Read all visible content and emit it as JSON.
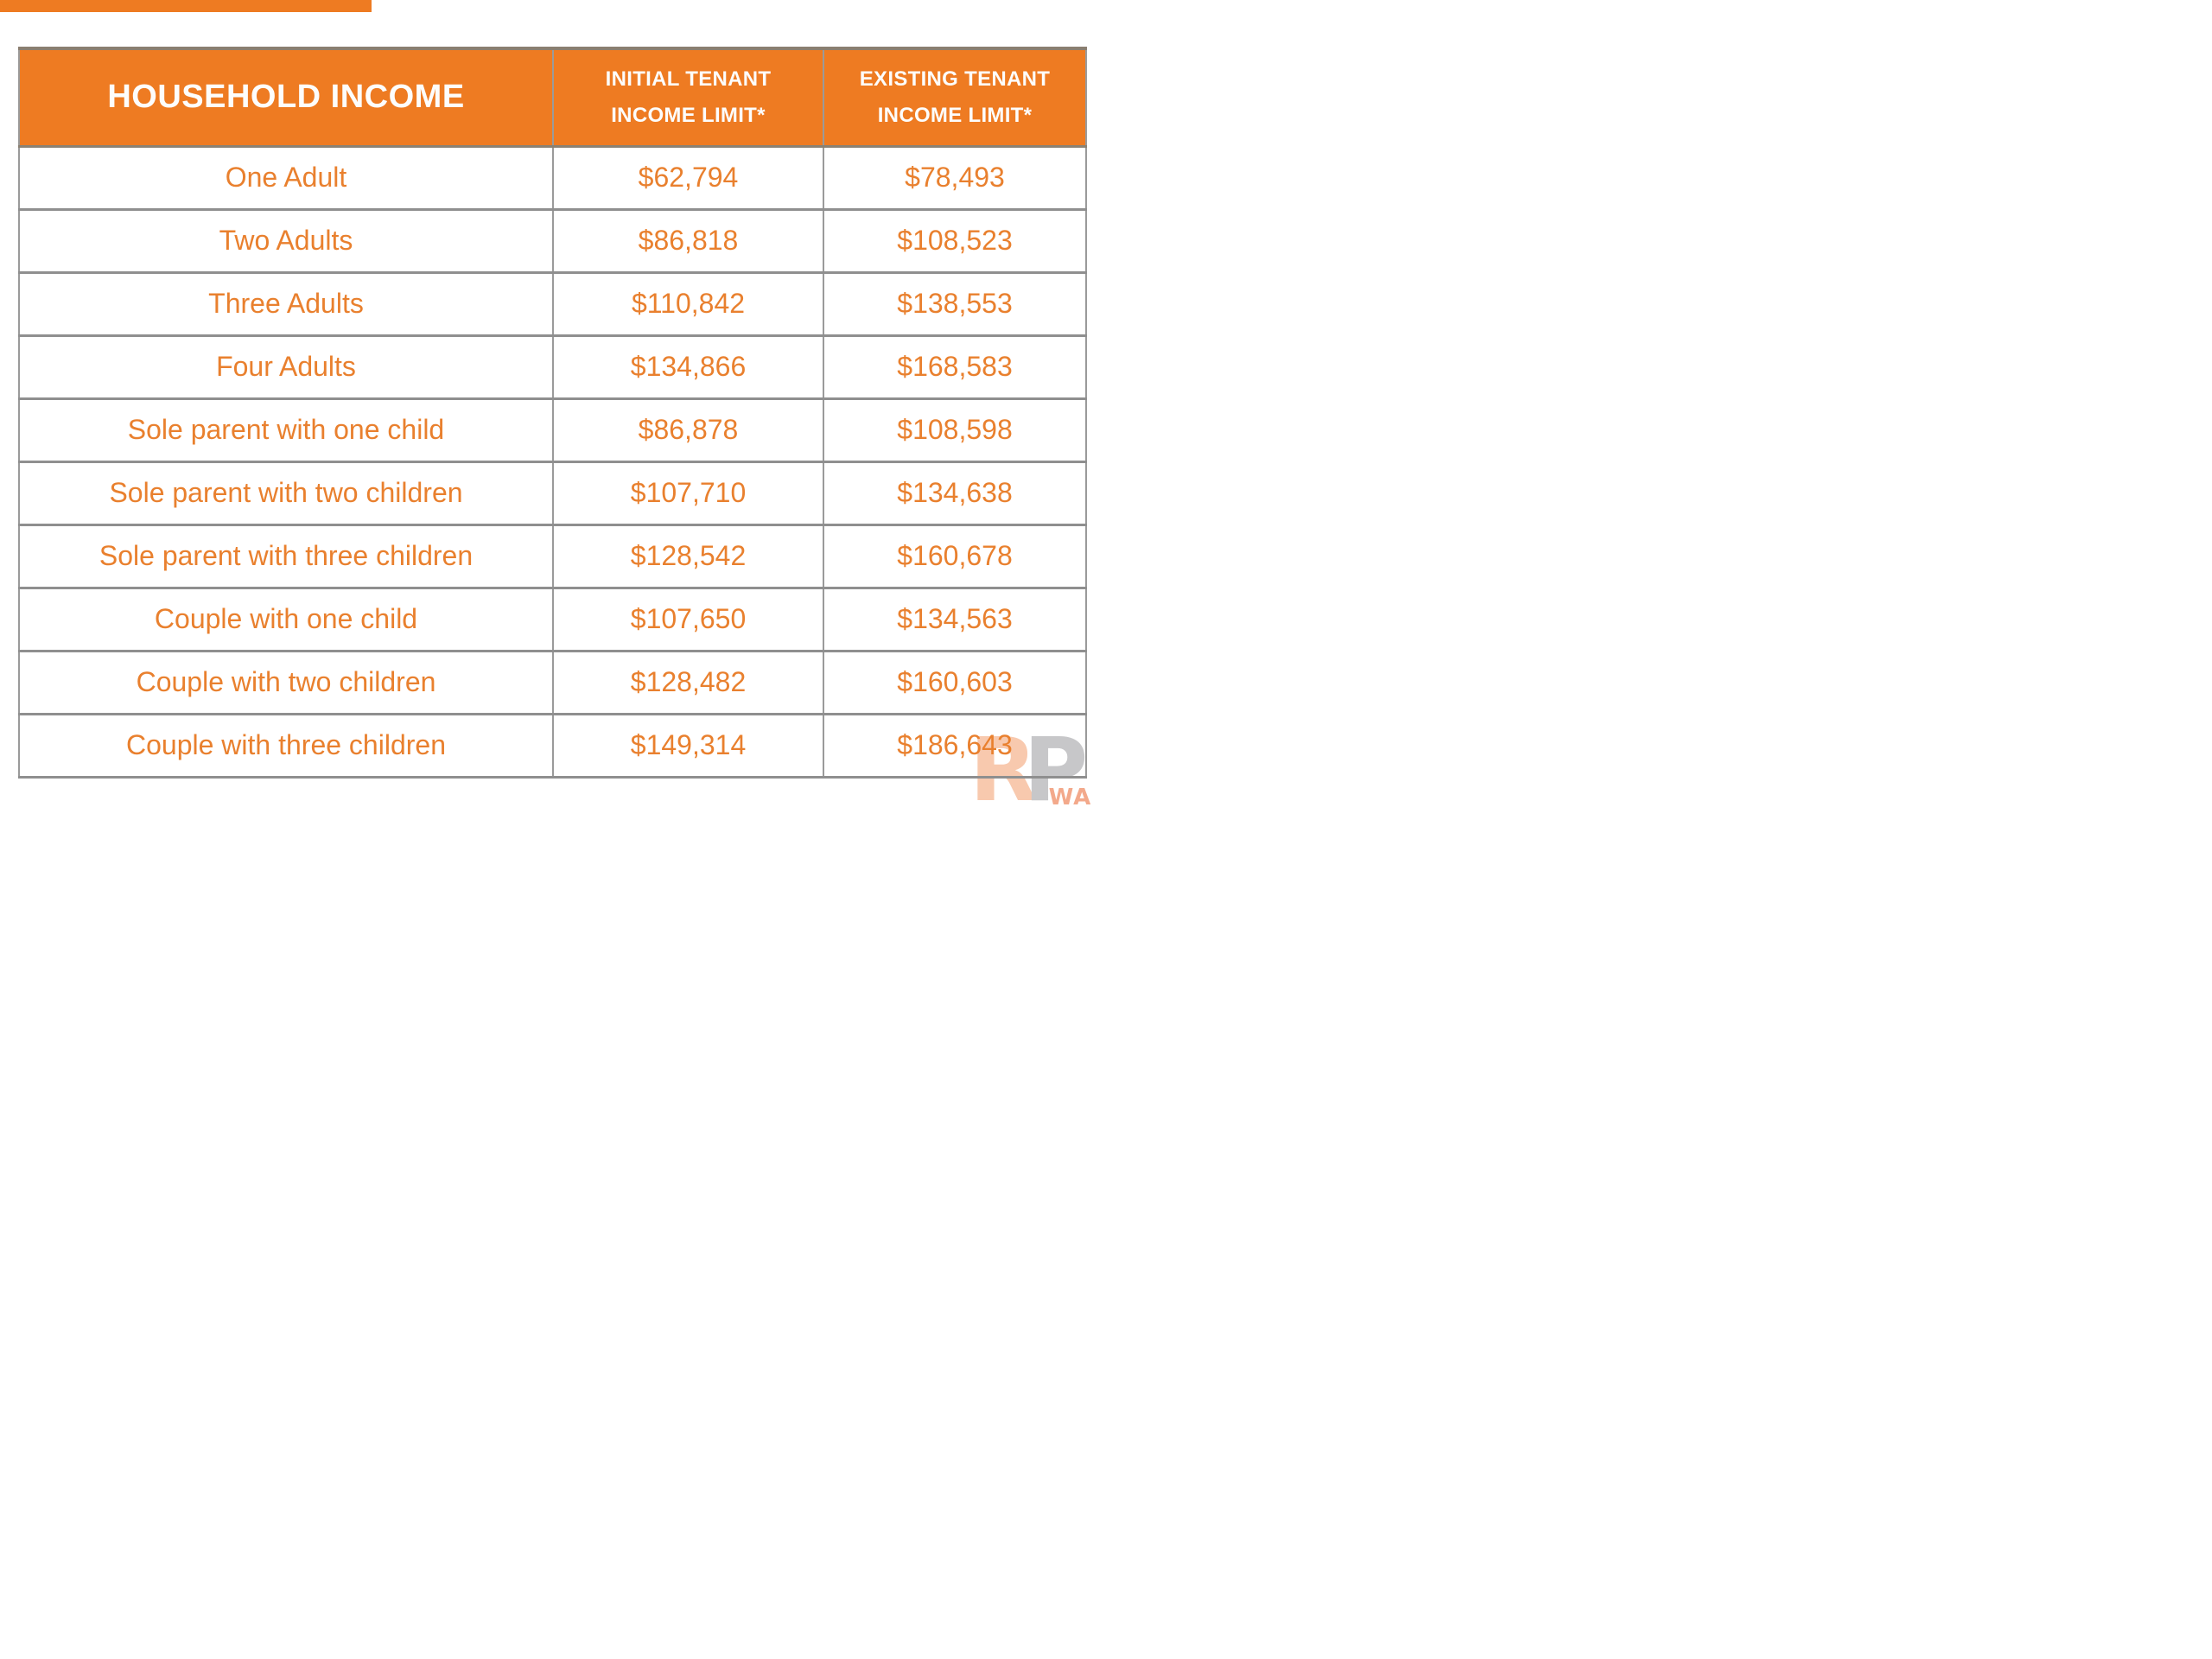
{
  "colors": {
    "header_orange": "#ee7b22",
    "body_text_orange": "#e9802e",
    "grid_border_gray": "#8f8f8f",
    "table_top_border_brown": "#8a7e70",
    "watermark_salmon": "#f8c9ae",
    "watermark_gray": "#c7c7c9",
    "watermark_wa_salmon": "#f3a98b"
  },
  "table": {
    "header": {
      "household": "HOUSEHOLD INCOME",
      "initial_line1": "INITIAL TENANT",
      "initial_line2": "INCOME LIMIT*",
      "existing_line1": "EXISTING TENANT",
      "existing_line2": "INCOME LIMIT*"
    },
    "rows": [
      {
        "label": "One Adult",
        "initial": "$62,794",
        "existing": "$78,493"
      },
      {
        "label": "Two Adults",
        "initial": "$86,818",
        "existing": "$108,523"
      },
      {
        "label": "Three Adults",
        "initial": "$110,842",
        "existing": "$138,553"
      },
      {
        "label": "Four Adults",
        "initial": "$134,866",
        "existing": "$168,583"
      },
      {
        "label": "Sole parent with one child",
        "initial": "$86,878",
        "existing": "$108,598"
      },
      {
        "label": "Sole parent with two children",
        "initial": "$107,710",
        "existing": "$134,638"
      },
      {
        "label": "Sole parent with three children",
        "initial": "$128,542",
        "existing": "$160,678"
      },
      {
        "label": "Couple with one child",
        "initial": "$107,650",
        "existing": "$134,563"
      },
      {
        "label": "Couple with two children",
        "initial": "$128,482",
        "existing": "$160,603"
      },
      {
        "label": "Couple with three children",
        "initial": "$149,314",
        "existing": "$186,643"
      }
    ]
  },
  "watermark": {
    "letter_r": "R",
    "letter_p": "P",
    "sub_text": "WA"
  }
}
